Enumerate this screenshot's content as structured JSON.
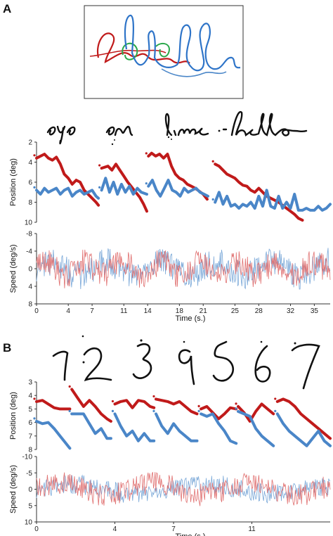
{
  "panels": {
    "a": {
      "label": "A"
    },
    "b": {
      "label": "B"
    }
  },
  "colors": {
    "red": "#c01a1a",
    "blue": "#4a86c8",
    "green": "#2aa84a",
    "ink": "#111111",
    "red_light": "#e07070",
    "blue_light": "#7aa8d8"
  },
  "chart_data": [
    {
      "id": "a-position",
      "type": "scatter",
      "ylabel": "Position (deg)",
      "ylim": [
        10,
        2
      ],
      "yticks": [
        "2",
        "4",
        "6",
        "8",
        "10"
      ],
      "x_range": [
        0,
        37
      ],
      "series": [
        {
          "color": "red",
          "segments": [
            {
              "x": [
                0,
                1,
                1.5,
                2,
                2.5,
                3,
                3.5,
                4,
                4.5,
                5,
                5.5,
                6,
                6.5,
                7,
                7.5,
                7.8
              ],
              "y": [
                3.6,
                3.2,
                3.6,
                3.8,
                3.5,
                4.2,
                5.2,
                5.6,
                6.2,
                5.8,
                6.0,
                6.8,
                7.2,
                7.6,
                8.0,
                8.3
              ]
            },
            {
              "x": [
                8.2,
                9,
                9.5,
                10,
                10.5,
                11,
                11.5,
                12,
                12.5,
                13,
                13.5,
                13.9
              ],
              "y": [
                4.6,
                4.4,
                4.8,
                4.2,
                4.8,
                5.4,
                6.0,
                6.5,
                7.0,
                7.5,
                8.2,
                8.9
              ]
            },
            {
              "x": [
                14.1,
                14.5,
                15,
                15.5,
                16,
                16.5,
                17,
                17.5,
                18,
                18.5,
                19,
                19.5,
                20,
                20.5,
                21,
                21.5
              ],
              "y": [
                3.4,
                3.1,
                3.4,
                3.2,
                3.6,
                3.2,
                4.4,
                5.2,
                5.6,
                5.8,
                6.2,
                6.4,
                6.6,
                6.9,
                7.2,
                7.7
              ]
            },
            {
              "x": [
                22.5,
                23,
                23.5,
                24,
                24.5,
                25,
                25.5,
                26,
                26.5,
                27,
                27.5,
                28,
                28.5,
                29,
                29.5,
                30,
                30.5,
                31,
                31.5,
                32,
                32.5,
                33,
                33.5
              ],
              "y": [
                4.2,
                4.4,
                4.8,
                5.2,
                5.4,
                5.6,
                6.0,
                6.3,
                6.4,
                6.8,
                7.0,
                6.6,
                7.0,
                7.4,
                7.6,
                7.8,
                8.0,
                8.3,
                8.6,
                8.9,
                9.2,
                9.6,
                9.8
              ]
            }
          ]
        },
        {
          "color": "blue",
          "segments": [
            {
              "x": [
                0,
                0.5,
                1,
                1.5,
                2,
                2.5,
                3,
                3.5,
                4,
                4.5,
                5,
                5.5,
                6,
                6.5,
                7,
                7.5,
                7.8
              ],
              "y": [
                6.8,
                7.2,
                6.6,
                7.0,
                6.8,
                6.6,
                7.2,
                6.8,
                6.6,
                7.4,
                7.0,
                6.8,
                7.2,
                7.0,
                6.8,
                7.4,
                7.6
              ]
            },
            {
              "x": [
                8.2,
                8.7,
                9.2,
                9.7,
                10.2,
                10.7,
                11.2,
                11.7,
                12.2,
                12.7,
                13.2,
                13.9
              ],
              "y": [
                6.8,
                5.6,
                7.0,
                6.0,
                7.2,
                6.2,
                7.0,
                6.4,
                7.2,
                6.6,
                7.0,
                7.2
              ]
            },
            {
              "x": [
                14.1,
                14.6,
                15.1,
                15.6,
                16.1,
                16.6,
                17.1,
                17.6,
                18.1,
                18.6,
                19.1,
                19.6,
                20.1,
                20.6,
                21.1,
                21.6
              ],
              "y": [
                6.4,
                5.8,
                6.8,
                7.4,
                6.6,
                5.8,
                6.8,
                7.0,
                7.4,
                6.6,
                7.0,
                6.8,
                6.6,
                7.0,
                7.2,
                7.4
              ]
            },
            {
              "x": [
                22.5,
                23,
                23.5,
                24,
                24.5,
                25,
                25.5,
                26,
                26.5,
                27,
                27.5,
                28,
                28.5,
                29,
                29.5,
                30,
                30.5,
                31,
                31.5,
                32,
                32.5,
                33,
                33.5,
                34,
                34.5,
                35,
                35.5,
                36,
                36.5,
                37
              ],
              "y": [
                8.0,
                7.0,
                8.2,
                7.4,
                8.4,
                8.2,
                8.6,
                8.2,
                8.4,
                8.0,
                8.6,
                7.4,
                8.4,
                6.8,
                8.4,
                8.6,
                7.4,
                8.6,
                8.0,
                8.6,
                7.2,
                8.8,
                8.8,
                8.6,
                8.8,
                8.8,
                8.4,
                8.8,
                8.6,
                8.2
              ]
            }
          ]
        }
      ]
    },
    {
      "id": "a-speed",
      "type": "line",
      "xlabel": "Time (s.)",
      "ylabel": "Speed (deg/s)",
      "ylim": [
        -8,
        8
      ],
      "yticks": [
        "-8",
        "-4",
        "0",
        "4",
        "8"
      ],
      "xticks": [
        "0",
        "4",
        "7",
        "11",
        "14",
        "18",
        "21",
        "25",
        "28",
        "32",
        "35"
      ],
      "xtick_values": [
        0,
        4,
        7,
        11,
        14,
        18,
        21,
        25,
        28,
        32,
        35
      ],
      "x_range": [
        0,
        37
      ],
      "noise": {
        "samples": 420,
        "red_amplitude": 3.0,
        "blue_amplitude": 3.2
      }
    },
    {
      "id": "b-position",
      "type": "scatter",
      "ylabel": "Position (deg)",
      "ylim": [
        8.5,
        3
      ],
      "yticks": [
        "3",
        "4",
        "5",
        "6",
        "7",
        "8"
      ],
      "x_range": [
        0,
        15
      ],
      "series": [
        {
          "color": "red",
          "segments": [
            {
              "x": [
                0,
                0.3,
                0.6,
                0.9,
                1.2,
                1.5,
                1.7
              ],
              "y": [
                4.6,
                4.5,
                4.8,
                5.1,
                5.2,
                5.2,
                5.2
              ]
            },
            {
              "x": [
                1.8,
                2.1,
                2.4,
                2.7,
                3.0,
                3.3,
                3.6,
                3.8
              ],
              "y": [
                3.6,
                4.3,
                5.0,
                4.5,
                5.0,
                5.6,
                6.0,
                6.2
              ]
            },
            {
              "x": [
                4.0,
                4.3,
                4.6,
                4.9,
                5.2,
                5.5,
                5.8,
                6.0
              ],
              "y": [
                4.8,
                4.6,
                4.5,
                5.1,
                4.5,
                4.6,
                5.0,
                5.1
              ]
            },
            {
              "x": [
                6.1,
                6.4,
                6.7,
                7.0,
                7.3,
                7.6,
                7.9,
                8.2
              ],
              "y": [
                4.4,
                4.5,
                4.6,
                4.8,
                4.6,
                5.0,
                5.4,
                5.6
              ]
            },
            {
              "x": [
                8.4,
                8.7,
                9.0,
                9.3,
                9.6,
                9.9,
                10.2
              ],
              "y": [
                5.2,
                5.0,
                5.5,
                6.0,
                5.6,
                5.1,
                5.2
              ]
            },
            {
              "x": [
                10.3,
                10.6,
                10.9,
                11.2,
                11.5,
                11.8,
                12.1
              ],
              "y": [
                5.0,
                5.5,
                6.2,
                5.4,
                4.8,
                5.2,
                5.6
              ]
            },
            {
              "x": [
                12.3,
                12.6,
                12.9,
                13.2,
                13.5,
                13.8,
                14.1,
                14.4,
                14.7,
                15
              ],
              "y": [
                4.6,
                4.4,
                4.6,
                5.0,
                5.6,
                6.0,
                6.4,
                6.8,
                7.2,
                7.6
              ]
            }
          ]
        },
        {
          "color": "blue",
          "segments": [
            {
              "x": [
                0,
                0.3,
                0.6,
                0.9,
                1.2,
                1.5,
                1.7
              ],
              "y": [
                6.2,
                6.4,
                6.3,
                6.8,
                7.4,
                8.0,
                8.4
              ]
            },
            {
              "x": [
                1.8,
                2.1,
                2.4,
                2.7,
                3.0,
                3.3,
                3.6,
                3.8
              ],
              "y": [
                5.6,
                5.6,
                5.6,
                6.4,
                7.2,
                6.8,
                7.6,
                7.6
              ]
            },
            {
              "x": [
                4.0,
                4.3,
                4.6,
                4.9,
                5.2,
                5.5,
                5.8,
                6.0
              ],
              "y": [
                5.6,
                6.6,
                7.4,
                7.0,
                7.8,
                7.2,
                7.8,
                7.8
              ]
            },
            {
              "x": [
                6.1,
                6.4,
                6.7,
                7.0,
                7.3,
                7.6,
                7.9,
                8.2
              ],
              "y": [
                5.6,
                6.6,
                7.2,
                6.4,
                7.0,
                7.4,
                7.8,
                7.8
              ]
            },
            {
              "x": [
                8.4,
                8.7,
                9.0,
                9.3,
                9.6,
                9.9,
                10.2
              ],
              "y": [
                5.6,
                5.8,
                5.6,
                6.4,
                7.0,
                7.8,
                8.0
              ]
            },
            {
              "x": [
                10.3,
                10.6,
                10.9,
                11.2,
                11.5,
                11.8,
                12.1
              ],
              "y": [
                5.4,
                5.6,
                5.8,
                6.8,
                7.4,
                7.8,
                8.2
              ]
            },
            {
              "x": [
                12.3,
                12.6,
                12.9,
                13.2,
                13.5,
                13.8,
                14.1,
                14.4,
                14.7,
                15
              ],
              "y": [
                5.6,
                6.4,
                7.0,
                7.4,
                7.8,
                8.2,
                7.6,
                7.0,
                7.8,
                8.2
              ]
            }
          ]
        }
      ]
    },
    {
      "id": "b-speed",
      "type": "line",
      "xlabel": "Time (s.)",
      "ylabel": "Speed (deg/s)",
      "ylim": [
        -10,
        10
      ],
      "yticks": [
        "-10",
        "-5",
        "0",
        "5",
        "10"
      ],
      "xticks": [
        "0",
        "4",
        "7",
        "11"
      ],
      "xtick_values": [
        0,
        4,
        7,
        11
      ],
      "x_range": [
        0,
        15
      ],
      "noise": {
        "samples": 380,
        "red_amplitude": 3.5,
        "blue_amplitude": 3.0
      }
    }
  ]
}
